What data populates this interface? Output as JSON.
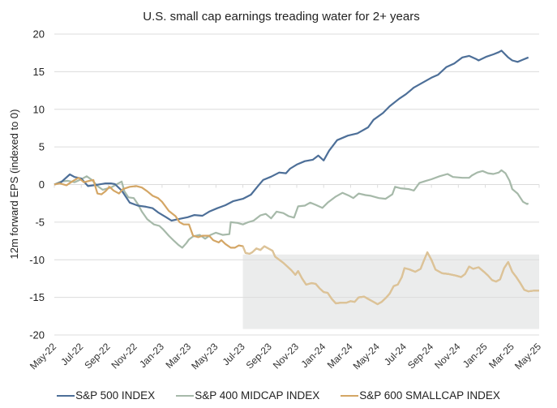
{
  "chart_data": {
    "type": "line",
    "title": "U.S. small cap earnings treading water for 2+ years",
    "xlabel": "",
    "ylabel": "12m forward EPS (indexed to 0)",
    "ylim": [
      -20,
      20
    ],
    "yticks": [
      20,
      15,
      10,
      5,
      0,
      -5,
      -10,
      -15,
      -20
    ],
    "ytick_labels": [
      "20",
      "15",
      "10",
      "5",
      "0",
      "-5",
      "-10",
      "-15",
      "-20"
    ],
    "x_unit": "months since May-22",
    "xlim": [
      0,
      36
    ],
    "x_tick_labels": [
      "May-22",
      "Jul-22",
      "Sep-22",
      "Nov-22",
      "Jan-23",
      "Mar-23",
      "May-23",
      "Jul-23",
      "Sep-23",
      "Nov-23",
      "Jan-24",
      "Mar-24",
      "May-24",
      "Jul-24",
      "Sep-24",
      "Nov-24",
      "Jan-25",
      "Mar-25",
      "May-25"
    ],
    "grid": "horizontal",
    "legend_position": "bottom",
    "shaded_region": {
      "x": [
        14,
        36
      ],
      "y": [
        -19.2,
        -9.3
      ],
      "color": "#ebecec"
    },
    "series": [
      {
        "name": "S&P 500 INDEX",
        "color": "#4d6f98",
        "points": [
          [
            0,
            0
          ],
          [
            0.5,
            0.3
          ],
          [
            1.15,
            1.35
          ],
          [
            1.5,
            1.0
          ],
          [
            2,
            0.8
          ],
          [
            2.5,
            -0.2
          ],
          [
            3.1,
            -0.05
          ],
          [
            3.8,
            0.15
          ],
          [
            4.2,
            0.15
          ],
          [
            4.5,
            0.05
          ],
          [
            5,
            -0.8
          ],
          [
            5.6,
            -2.4
          ],
          [
            6.2,
            -2.8
          ],
          [
            6.8,
            -2.95
          ],
          [
            7.3,
            -3.15
          ],
          [
            7.7,
            -3.7
          ],
          [
            8.3,
            -4.35
          ],
          [
            8.7,
            -4.8
          ],
          [
            9.2,
            -4.6
          ],
          [
            9.9,
            -4.35
          ],
          [
            10.4,
            -4.05
          ],
          [
            11,
            -4.15
          ],
          [
            11.5,
            -3.6
          ],
          [
            12.1,
            -3.15
          ],
          [
            12.7,
            -2.75
          ],
          [
            13.3,
            -2.2
          ],
          [
            14,
            -1.9
          ],
          [
            14.6,
            -1.35
          ],
          [
            15.1,
            -0.25
          ],
          [
            15.5,
            0.6
          ],
          [
            16.1,
            1.05
          ],
          [
            16.7,
            1.6
          ],
          [
            17.2,
            1.5
          ],
          [
            17.5,
            2.1
          ],
          [
            18,
            2.65
          ],
          [
            18.6,
            3.1
          ],
          [
            19.2,
            3.3
          ],
          [
            19.6,
            3.85
          ],
          [
            20,
            3.2
          ],
          [
            20.4,
            4.5
          ],
          [
            21,
            5.9
          ],
          [
            21.8,
            6.5
          ],
          [
            22.5,
            6.8
          ],
          [
            23.3,
            7.6
          ],
          [
            23.7,
            8.6
          ],
          [
            24.4,
            9.5
          ],
          [
            24.9,
            10.4
          ],
          [
            25.6,
            11.4
          ],
          [
            26.1,
            12.0
          ],
          [
            26.7,
            12.9
          ],
          [
            27.3,
            13.5
          ],
          [
            28,
            14.2
          ],
          [
            28.5,
            14.6
          ],
          [
            29.1,
            15.6
          ],
          [
            29.7,
            16.1
          ],
          [
            30.3,
            16.9
          ],
          [
            30.8,
            17.1
          ],
          [
            31.3,
            16.7
          ],
          [
            31.5,
            16.5
          ],
          [
            32.1,
            17.0
          ],
          [
            32.6,
            17.3
          ],
          [
            33,
            17.6
          ],
          [
            33.2,
            17.8
          ],
          [
            33.7,
            16.9
          ],
          [
            34,
            16.5
          ],
          [
            34.4,
            16.3
          ],
          [
            34.8,
            16.6
          ],
          [
            35.2,
            16.9
          ]
        ]
      },
      {
        "name": "S&P 400 MIDCAP INDEX",
        "color": "#a6b9a9",
        "points": [
          [
            0,
            0
          ],
          [
            0.5,
            0.4
          ],
          [
            1,
            0.5
          ],
          [
            1.5,
            0.3
          ],
          [
            2,
            0.7
          ],
          [
            2.4,
            1.1
          ],
          [
            2.8,
            0.6
          ],
          [
            3.2,
            -0.2
          ],
          [
            3.6,
            -0.7
          ],
          [
            4.2,
            -0.4
          ],
          [
            4.7,
            0.1
          ],
          [
            5,
            0.4
          ],
          [
            5.2,
            -0.9
          ],
          [
            5.5,
            -1.7
          ],
          [
            5.9,
            -1.8
          ],
          [
            6.2,
            -2.6
          ],
          [
            6.5,
            -3.6
          ],
          [
            6.9,
            -4.6
          ],
          [
            7.4,
            -5.3
          ],
          [
            7.8,
            -5.5
          ],
          [
            8.1,
            -6.0
          ],
          [
            8.5,
            -6.8
          ],
          [
            8.9,
            -7.5
          ],
          [
            9.2,
            -8.0
          ],
          [
            9.5,
            -8.4
          ],
          [
            9.8,
            -7.8
          ],
          [
            10,
            -7.3
          ],
          [
            10.3,
            -6.9
          ],
          [
            10.8,
            -6.7
          ],
          [
            11.2,
            -7.2
          ],
          [
            11.6,
            -6.7
          ],
          [
            12,
            -6.4
          ],
          [
            12.5,
            -6.7
          ],
          [
            13,
            -6.6
          ],
          [
            13.1,
            -5.0
          ],
          [
            13.6,
            -5.1
          ],
          [
            14,
            -5.3
          ],
          [
            14.4,
            -5.0
          ],
          [
            14.8,
            -4.8
          ],
          [
            15.3,
            -4.1
          ],
          [
            15.7,
            -3.9
          ],
          [
            16.1,
            -4.5
          ],
          [
            16.5,
            -3.6
          ],
          [
            17,
            -3.8
          ],
          [
            17.4,
            -4.2
          ],
          [
            17.8,
            -4.4
          ],
          [
            18.1,
            -2.9
          ],
          [
            18.6,
            -2.8
          ],
          [
            19,
            -2.4
          ],
          [
            19.4,
            -2.7
          ],
          [
            19.9,
            -3.1
          ],
          [
            20.3,
            -2.4
          ],
          [
            20.9,
            -1.6
          ],
          [
            21.4,
            -1.1
          ],
          [
            21.9,
            -1.5
          ],
          [
            22.2,
            -1.8
          ],
          [
            22.6,
            -1.2
          ],
          [
            23.1,
            -1.4
          ],
          [
            23.5,
            -1.5
          ],
          [
            24.1,
            -1.8
          ],
          [
            24.6,
            -1.9
          ],
          [
            25.1,
            -1.3
          ],
          [
            25.3,
            -0.3
          ],
          [
            25.7,
            -0.5
          ],
          [
            26.3,
            -0.6
          ],
          [
            26.7,
            -0.8
          ],
          [
            27.1,
            0.2
          ],
          [
            27.6,
            0.5
          ],
          [
            28,
            0.7
          ],
          [
            28.6,
            1.1
          ],
          [
            29.2,
            1.4
          ],
          [
            29.6,
            1.0
          ],
          [
            30.3,
            0.9
          ],
          [
            30.8,
            0.9
          ],
          [
            31,
            1.2
          ],
          [
            31.4,
            1.6
          ],
          [
            31.8,
            1.8
          ],
          [
            32.2,
            1.5
          ],
          [
            32.6,
            1.4
          ],
          [
            33,
            1.6
          ],
          [
            33.2,
            1.9
          ],
          [
            33.5,
            1.5
          ],
          [
            33.8,
            0.5
          ],
          [
            34,
            -0.6
          ],
          [
            34.4,
            -1.2
          ],
          [
            34.8,
            -2.3
          ],
          [
            35.1,
            -2.6
          ],
          [
            35.2,
            -2.5
          ]
        ]
      },
      {
        "name": "S&P 600 SMALLCAP INDEX",
        "color": "#d4a665",
        "points": [
          [
            0,
            0
          ],
          [
            0.4,
            0.15
          ],
          [
            0.9,
            -0.1
          ],
          [
            1.4,
            0.5
          ],
          [
            1.8,
            0.9
          ],
          [
            2.2,
            0.3
          ],
          [
            2.6,
            0.5
          ],
          [
            2.9,
            0.6
          ],
          [
            3.2,
            -1.2
          ],
          [
            3.5,
            -1.3
          ],
          [
            3.8,
            -0.9
          ],
          [
            4.1,
            -0.3
          ],
          [
            4.4,
            -0.8
          ],
          [
            4.8,
            -1.2
          ],
          [
            5.1,
            -0.6
          ],
          [
            5.6,
            -0.3
          ],
          [
            6.1,
            -0.2
          ],
          [
            6.5,
            -0.4
          ],
          [
            6.9,
            -0.9
          ],
          [
            7.3,
            -1.5
          ],
          [
            7.7,
            -1.8
          ],
          [
            8,
            -2.3
          ],
          [
            8.5,
            -3.5
          ],
          [
            9,
            -4.2
          ],
          [
            9.3,
            -5.0
          ],
          [
            9.6,
            -5.3
          ],
          [
            10,
            -5.3
          ],
          [
            10.3,
            -6.8
          ],
          [
            10.7,
            -7.0
          ],
          [
            11,
            -6.8
          ],
          [
            11.5,
            -6.8
          ],
          [
            11.8,
            -7.4
          ],
          [
            12.2,
            -7.7
          ],
          [
            12.4,
            -7.4
          ],
          [
            12.7,
            -7.9
          ],
          [
            13.1,
            -8.4
          ],
          [
            13.4,
            -8.4
          ],
          [
            13.7,
            -8.1
          ],
          [
            14,
            -8.2
          ],
          [
            14.2,
            -9.1
          ],
          [
            14.5,
            -9.2
          ],
          [
            14.7,
            -9.0
          ],
          [
            15,
            -8.5
          ],
          [
            15.3,
            -8.7
          ],
          [
            15.6,
            -8.2
          ],
          [
            16,
            -8.6
          ],
          [
            16.2,
            -8.8
          ],
          [
            16.4,
            -9.6
          ],
          [
            16.7,
            -10.0
          ],
          [
            17,
            -10.4
          ],
          [
            17.3,
            -10.9
          ],
          [
            17.6,
            -11.4
          ],
          [
            17.9,
            -12.0
          ],
          [
            18.1,
            -11.5
          ],
          [
            18.4,
            -12.5
          ],
          [
            18.7,
            -13.3
          ],
          [
            19.1,
            -13.1
          ],
          [
            19.4,
            -13.2
          ],
          [
            19.7,
            -13.8
          ],
          [
            20,
            -14.3
          ],
          [
            20.3,
            -14.4
          ],
          [
            20.6,
            -15.2
          ],
          [
            20.9,
            -15.8
          ],
          [
            21.3,
            -15.7
          ],
          [
            21.7,
            -15.7
          ],
          [
            22,
            -15.5
          ],
          [
            22.3,
            -15.6
          ],
          [
            22.6,
            -15.0
          ],
          [
            23,
            -14.9
          ],
          [
            23.3,
            -15.2
          ],
          [
            23.7,
            -15.6
          ],
          [
            24,
            -15.9
          ],
          [
            24.3,
            -15.6
          ],
          [
            24.6,
            -15.1
          ],
          [
            24.9,
            -14.5
          ],
          [
            25.2,
            -13.5
          ],
          [
            25.5,
            -13.3
          ],
          [
            25.8,
            -12.3
          ],
          [
            26,
            -11.1
          ],
          [
            26.4,
            -11.3
          ],
          [
            26.8,
            -11.6
          ],
          [
            27.2,
            -11.2
          ],
          [
            27.4,
            -10.3
          ],
          [
            27.7,
            -9.0
          ],
          [
            28,
            -10.0
          ],
          [
            28.3,
            -11.3
          ],
          [
            28.8,
            -11.8
          ],
          [
            29.3,
            -11.9
          ],
          [
            29.8,
            -12.1
          ],
          [
            30.2,
            -12.3
          ],
          [
            30.5,
            -11.9
          ],
          [
            30.8,
            -10.9
          ],
          [
            31.1,
            -11.2
          ],
          [
            31.5,
            -11.0
          ],
          [
            31.9,
            -11.6
          ],
          [
            32.2,
            -12.1
          ],
          [
            32.5,
            -12.7
          ],
          [
            32.8,
            -12.9
          ],
          [
            33.1,
            -12.6
          ],
          [
            33.4,
            -11.1
          ],
          [
            33.7,
            -10.3
          ],
          [
            34,
            -11.6
          ],
          [
            34.3,
            -12.3
          ],
          [
            34.6,
            -13.1
          ],
          [
            34.9,
            -14.0
          ],
          [
            35.2,
            -14.2
          ],
          [
            35.6,
            -14.1
          ],
          [
            36,
            -14.1
          ]
        ]
      }
    ]
  },
  "legend": {
    "items": [
      {
        "label": "S&P 500 INDEX",
        "color": "#4d6f98"
      },
      {
        "label": "S&P 400 MIDCAP INDEX",
        "color": "#a6b9a9"
      },
      {
        "label": "S&P 600 SMALLCAP INDEX",
        "color": "#d4a665"
      }
    ]
  }
}
